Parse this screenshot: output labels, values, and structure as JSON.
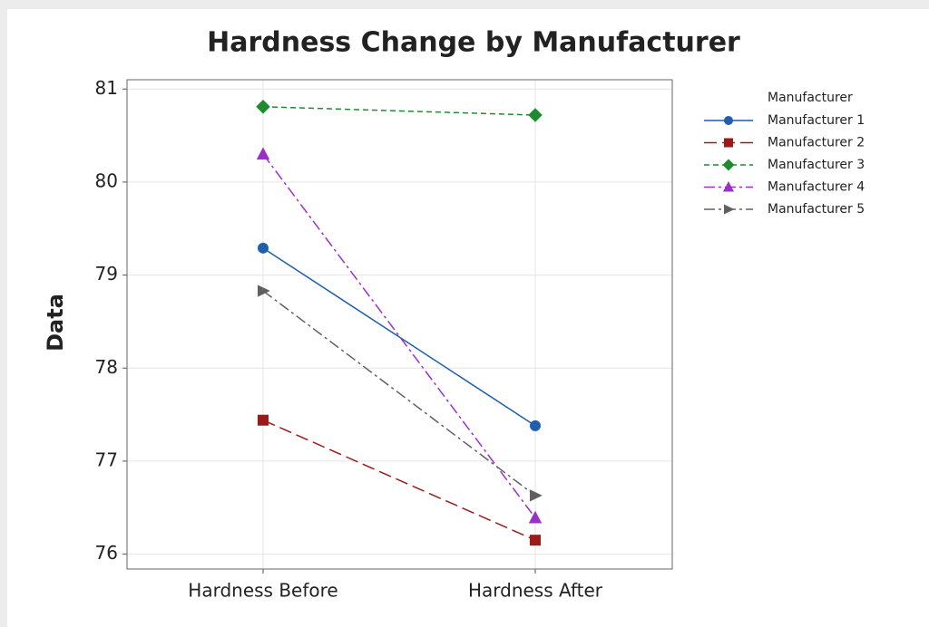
{
  "chart_data": {
    "type": "line",
    "title": "Hardness Change by Manufacturer",
    "y_label": "Data",
    "categories": [
      "Hardness Before",
      "Hardness After"
    ],
    "legend_title": "Manufacturer",
    "legend": "right",
    "grid": true,
    "series": [
      {
        "name": "Manufacturer 1",
        "color": "#1f5fad",
        "marker": "circle",
        "dash": "solid",
        "values": [
          79.29,
          77.38
        ]
      },
      {
        "name": "Manufacturer 2",
        "color": "#9b1b1b",
        "marker": "square",
        "dash": "dashed",
        "values": [
          77.44,
          76.15
        ]
      },
      {
        "name": "Manufacturer 3",
        "color": "#1e8c2e",
        "marker": "diamond",
        "dash": "dotted",
        "values": [
          80.81,
          80.72
        ]
      },
      {
        "name": "Manufacturer 4",
        "color": "#9b30c8",
        "marker": "triangle",
        "dash": "dashdot",
        "values": [
          80.3,
          76.39
        ]
      },
      {
        "name": "Manufacturer 5",
        "color": "#606060",
        "marker": "arrow",
        "dash": "dashdot",
        "values": [
          78.83,
          76.63
        ]
      }
    ],
    "ylim": [
      75.84,
      81.1
    ],
    "yticks": [
      76,
      77,
      78,
      79,
      80,
      81
    ]
  }
}
